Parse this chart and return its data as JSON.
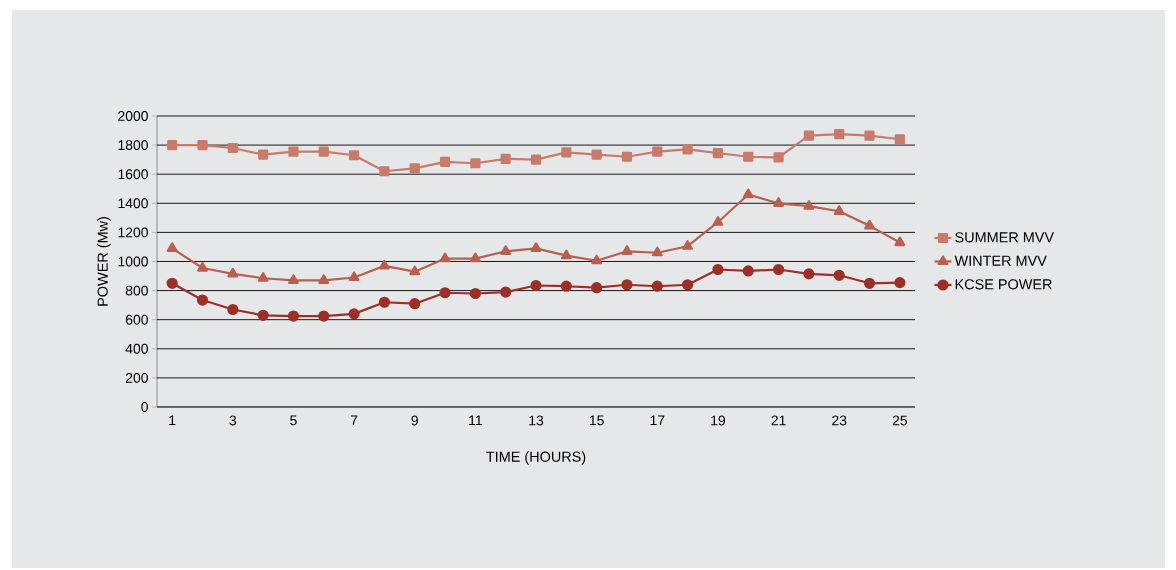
{
  "chart_data": {
    "type": "line",
    "xlabel": "TIME (HOURS)",
    "ylabel": "POWER (Mw)",
    "categories": [
      "1",
      null,
      "3",
      null,
      "5",
      null,
      "7",
      null,
      "9",
      null,
      "11",
      null,
      "13",
      null,
      "15",
      null,
      "17",
      null,
      "19",
      null,
      "21",
      null,
      "23",
      null,
      "25"
    ],
    "series": [
      {
        "name": "SUMMER MVV",
        "color": "#c87a6b",
        "marker": "square",
        "values": [
          1800,
          1800,
          1780,
          1735,
          1755,
          1755,
          1730,
          1620,
          1640,
          1685,
          1675,
          1705,
          1700,
          1750,
          1735,
          1720,
          1755,
          1770,
          1745,
          1720,
          1715,
          1865,
          1875,
          1865,
          1840
        ]
      },
      {
        "name": "WINTER MVV",
        "color": "#b85f4f",
        "marker": "triangle",
        "values": [
          1090,
          955,
          915,
          885,
          870,
          870,
          890,
          970,
          930,
          1020,
          1020,
          1070,
          1090,
          1040,
          1005,
          1070,
          1060,
          1105,
          1270,
          1460,
          1400,
          1380,
          1345,
          1245,
          1130
        ]
      },
      {
        "name": "KCSE POWER",
        "color": "#9c2f27",
        "marker": "circle",
        "values": [
          850,
          735,
          670,
          630,
          625,
          625,
          640,
          720,
          710,
          785,
          780,
          790,
          835,
          830,
          820,
          840,
          830,
          840,
          945,
          935,
          945,
          915,
          905,
          850,
          855
        ]
      }
    ],
    "ylim": [
      0,
      2000
    ],
    "yticks": [
      0,
      200,
      400,
      600,
      800,
      1000,
      1200,
      1400,
      1600,
      1800,
      2000
    ],
    "grid": "y",
    "legend": "right"
  }
}
